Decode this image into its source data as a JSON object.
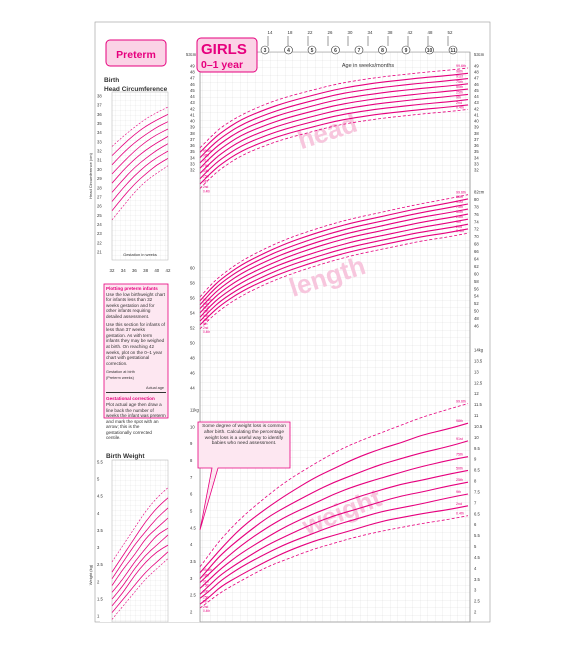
{
  "header": {
    "preterm_label": "Preterm",
    "title": "GIRLS",
    "subtitle": "0–1 year",
    "top_axis_label": "Age in weeks/months",
    "week_ticks": [
      "14",
      "18",
      "22",
      "26",
      "30",
      "34",
      "38",
      "42",
      "48",
      "52"
    ],
    "month_ticks": [
      "3",
      "4",
      "5",
      "6",
      "7",
      "8",
      "9",
      "10",
      "11"
    ],
    "right_cm_label": "53cm",
    "left_cm_label": "53cm"
  },
  "colors": {
    "magenta": "#e6007e",
    "light_pink": "#f7c6dd",
    "pale_pink": "#fde7f1",
    "grid": "#c9c9c9",
    "text": "#333333"
  },
  "watermarks": [
    "head",
    "length",
    "weight"
  ],
  "percentile_labels": [
    "99.6th",
    "98th",
    "91st",
    "75th",
    "50th",
    "25th",
    "9th",
    "2nd",
    "0.4th"
  ],
  "preterm_head": {
    "title_line1": "Birth",
    "title_line2": "Head Circumference",
    "ylabel": "Head Circumference (cm)",
    "xlabel": "Gestation in weeks",
    "y_ticks": [
      "38",
      "37",
      "36",
      "35",
      "34",
      "33",
      "32",
      "31",
      "30",
      "29",
      "28",
      "27",
      "26",
      "25",
      "24",
      "23",
      "22",
      "21"
    ],
    "x_ticks": [
      "32",
      "34",
      "36",
      "38",
      "40",
      "42"
    ]
  },
  "preterm_weight": {
    "title": "Birth Weight",
    "ylabel": "Weight (kg)",
    "y_ticks": [
      "5.5",
      "5",
      "4.5",
      "4",
      "3.5",
      "3",
      "2.5",
      "2",
      "1.5",
      "1"
    ]
  },
  "info_box": {
    "para1_heading": "Plotting preterm infants",
    "para1": "Use the low birthweight chart for infants less than 32 weeks gestation and for other infants requiring detailed assessment.",
    "para2": "Use this section for infants of less than 37 weeks gestation. As with term infants they may be weighed at birth. On reaching 42 weeks, plot on the 0–1 year chart with gestational correction.",
    "diagram_label1": "Gestation at birth",
    "diagram_label2": "(Preterm weeks)",
    "diagram_label3": "Actual age",
    "para3_heading": "Gestational correction",
    "para3": "Plot actual age then draw a line back the number of weeks the infant was preterm and mark the spot with an arrow; this is the gestationally corrected centile."
  },
  "callout": {
    "text": "Some degree of weight loss is common after birth. Calculating the percentage weight loss is a useful way to identify babies who need assessment."
  },
  "main_axes": {
    "head_ticks": [
      "49",
      "48",
      "47",
      "46",
      "45",
      "44",
      "43",
      "42",
      "41",
      "40",
      "39",
      "38",
      "37",
      "36",
      "35",
      "34",
      "33",
      "32"
    ],
    "length_ticks": [
      "82cm",
      "80",
      "78",
      "76",
      "74",
      "72",
      "70",
      "68",
      "66",
      "64",
      "62",
      "60",
      "58",
      "56",
      "54",
      "52",
      "50",
      "48",
      "46"
    ],
    "weight_ticks": [
      "14kg",
      "13.5",
      "13",
      "12.5",
      "12",
      "11.5",
      "11",
      "10.5",
      "10",
      "9.5",
      "9",
      "8.5",
      "8",
      "7.5",
      "7",
      "6.5",
      "6",
      "5.5",
      "5",
      "4.5",
      "4",
      "3.5",
      "3",
      "2.5",
      "2"
    ],
    "left_length_ticks": [
      "60",
      "58",
      "56",
      "54",
      "52",
      "50",
      "48",
      "46",
      "44"
    ],
    "left_weight_ticks": [
      "11kg",
      "10",
      "9",
      "8",
      "7",
      "6",
      "5",
      "4.5",
      "4",
      "3.5",
      "3",
      "2.5",
      "2"
    ],
    "head_unit": "cm",
    "length_unit": "cm",
    "weight_unit": "kg"
  },
  "chart_data": [
    {
      "type": "line",
      "title": "Head circumference",
      "xlabel": "Age in weeks/months",
      "ylabel": "cm",
      "x": [
        0,
        2,
        4,
        8,
        13,
        17,
        22,
        26,
        30,
        35,
        39,
        43,
        48,
        52
      ],
      "ylim": [
        32,
        49
      ],
      "series": [
        {
          "name": "99.6th",
          "values": [
            37.6,
            39.0,
            40.3,
            42.0,
            43.5,
            44.4,
            45.3,
            46.0,
            46.5,
            47.0,
            47.3,
            47.6,
            47.9,
            48.2
          ]
        },
        {
          "name": "98th",
          "values": [
            37.0,
            38.4,
            39.6,
            41.4,
            42.8,
            43.7,
            44.6,
            45.3,
            45.8,
            46.3,
            46.6,
            46.9,
            47.2,
            47.5
          ]
        },
        {
          "name": "91st",
          "values": [
            36.3,
            37.7,
            38.9,
            40.7,
            42.1,
            43.0,
            43.9,
            44.6,
            45.1,
            45.6,
            45.9,
            46.2,
            46.5,
            46.8
          ]
        },
        {
          "name": "75th",
          "values": [
            35.6,
            37.0,
            38.2,
            40.0,
            41.4,
            42.3,
            43.2,
            43.9,
            44.4,
            44.9,
            45.2,
            45.5,
            45.8,
            46.1
          ]
        },
        {
          "name": "50th",
          "values": [
            34.9,
            36.3,
            37.5,
            39.3,
            40.7,
            41.6,
            42.5,
            43.2,
            43.7,
            44.2,
            44.5,
            44.8,
            45.1,
            45.4
          ]
        },
        {
          "name": "25th",
          "values": [
            34.2,
            35.6,
            36.8,
            38.6,
            40.0,
            40.9,
            41.8,
            42.5,
            43.0,
            43.5,
            43.8,
            44.1,
            44.4,
            44.7
          ]
        },
        {
          "name": "9th",
          "values": [
            33.5,
            34.9,
            36.1,
            37.9,
            39.3,
            40.2,
            41.1,
            41.8,
            42.3,
            42.8,
            43.1,
            43.4,
            43.7,
            44.0
          ]
        },
        {
          "name": "2nd",
          "values": [
            32.8,
            34.2,
            35.4,
            37.2,
            38.6,
            39.5,
            40.4,
            41.1,
            41.6,
            42.1,
            42.4,
            42.7,
            43.0,
            43.3
          ]
        },
        {
          "name": "0.4th",
          "values": [
            32.2,
            33.6,
            34.8,
            36.6,
            38.0,
            38.9,
            39.8,
            40.5,
            41.0,
            41.5,
            41.8,
            42.1,
            42.4,
            42.7
          ]
        }
      ]
    },
    {
      "type": "line",
      "title": "Length",
      "xlabel": "Age in weeks/months",
      "ylabel": "cm",
      "x": [
        0,
        2,
        4,
        8,
        13,
        17,
        22,
        26,
        30,
        35,
        39,
        43,
        48,
        52
      ],
      "ylim": [
        46,
        82
      ],
      "series": [
        {
          "name": "99.6th",
          "values": [
            54.5,
            57.5,
            60.0,
            63.8,
            67.2,
            69.5,
            71.8,
            73.4,
            74.8,
            76.2,
            77.4,
            78.5,
            79.7,
            80.8
          ]
        },
        {
          "name": "98th",
          "values": [
            53.5,
            56.5,
            59.0,
            62.8,
            66.1,
            68.4,
            70.7,
            72.3,
            73.7,
            75.1,
            76.3,
            77.4,
            78.6,
            79.7
          ]
        },
        {
          "name": "91st",
          "values": [
            52.5,
            55.5,
            58.0,
            61.7,
            65.0,
            67.2,
            69.5,
            71.1,
            72.5,
            73.9,
            75.1,
            76.2,
            77.4,
            78.4
          ]
        },
        {
          "name": "75th",
          "values": [
            51.5,
            54.4,
            56.9,
            60.6,
            63.8,
            66.0,
            68.3,
            69.9,
            71.3,
            72.7,
            73.9,
            75.0,
            76.1,
            77.1
          ]
        },
        {
          "name": "50th",
          "values": [
            50.4,
            53.3,
            55.8,
            59.4,
            62.6,
            64.8,
            67.1,
            68.7,
            70.1,
            71.5,
            72.6,
            73.7,
            74.8,
            75.8
          ]
        },
        {
          "name": "25th",
          "values": [
            49.3,
            52.2,
            54.6,
            58.2,
            61.4,
            63.6,
            65.8,
            67.4,
            68.8,
            70.2,
            71.3,
            72.4,
            73.5,
            74.5
          ]
        },
        {
          "name": "9th",
          "values": [
            48.3,
            51.1,
            53.5,
            57.0,
            60.2,
            62.4,
            64.6,
            66.2,
            67.6,
            69.0,
            70.1,
            71.2,
            72.2,
            73.2
          ]
        },
        {
          "name": "2nd",
          "values": [
            47.3,
            50.0,
            52.4,
            55.9,
            59.1,
            61.2,
            63.4,
            65.0,
            66.4,
            67.8,
            68.9,
            70.0,
            71.0,
            72.0
          ]
        },
        {
          "name": "0.4th",
          "values": [
            46.3,
            49.0,
            51.3,
            54.8,
            58.0,
            60.1,
            62.3,
            63.9,
            65.3,
            66.7,
            67.8,
            68.9,
            69.9,
            70.9
          ]
        }
      ]
    },
    {
      "type": "line",
      "title": "Weight",
      "xlabel": "Age in weeks/months",
      "ylabel": "kg",
      "x": [
        0,
        2,
        4,
        8,
        13,
        17,
        22,
        26,
        30,
        35,
        39,
        43,
        48,
        52
      ],
      "ylim": [
        2,
        14
      ],
      "series": [
        {
          "name": "99.6th",
          "values": [
            4.4,
            5.1,
            5.8,
            6.9,
            8.0,
            8.8,
            9.6,
            10.2,
            10.7,
            11.2,
            11.6,
            12.0,
            12.4,
            12.7
          ]
        },
        {
          "name": "98th",
          "values": [
            4.1,
            4.7,
            5.3,
            6.4,
            7.4,
            8.1,
            8.9,
            9.4,
            9.9,
            10.4,
            10.7,
            11.1,
            11.4,
            11.7
          ]
        },
        {
          "name": "91st",
          "values": [
            3.8,
            4.4,
            5.0,
            5.9,
            6.9,
            7.5,
            8.2,
            8.7,
            9.1,
            9.6,
            9.9,
            10.2,
            10.5,
            10.8
          ]
        },
        {
          "name": "75th",
          "values": [
            3.6,
            4.1,
            4.6,
            5.5,
            6.4,
            7.0,
            7.6,
            8.1,
            8.5,
            8.9,
            9.2,
            9.5,
            9.8,
            10.0
          ]
        },
        {
          "name": "50th",
          "values": [
            3.3,
            3.8,
            4.3,
            5.1,
            5.9,
            6.5,
            7.1,
            7.5,
            7.9,
            8.3,
            8.6,
            8.8,
            9.1,
            9.3
          ]
        },
        {
          "name": "25th",
          "values": [
            3.0,
            3.5,
            4.0,
            4.7,
            5.5,
            6.0,
            6.6,
            7.0,
            7.3,
            7.7,
            8.0,
            8.2,
            8.5,
            8.7
          ]
        },
        {
          "name": "9th",
          "values": [
            2.8,
            3.2,
            3.7,
            4.4,
            5.1,
            5.6,
            6.1,
            6.5,
            6.8,
            7.2,
            7.4,
            7.6,
            7.9,
            8.1
          ]
        },
        {
          "name": "2nd",
          "values": [
            2.5,
            2.9,
            3.4,
            4.0,
            4.7,
            5.2,
            5.7,
            6.0,
            6.3,
            6.7,
            6.9,
            7.1,
            7.3,
            7.5
          ]
        },
        {
          "name": "0.4th",
          "values": [
            2.3,
            2.7,
            3.1,
            3.7,
            4.4,
            4.8,
            5.3,
            5.6,
            5.9,
            6.2,
            6.4,
            6.6,
            6.8,
            7.0
          ]
        }
      ]
    },
    {
      "type": "line",
      "title": "Birth Head Circumference",
      "xlabel": "Gestation in weeks",
      "ylabel": "Head Circumference (cm)",
      "x": [
        32,
        34,
        36,
        38,
        40,
        42
      ],
      "ylim": [
        21,
        38
      ],
      "series": [
        {
          "name": "99.6th",
          "values": [
            32.5,
            33.6,
            34.6,
            35.5,
            36.2,
            36.8
          ]
        },
        {
          "name": "98th",
          "values": [
            31.5,
            32.7,
            33.8,
            34.7,
            35.4,
            36.0
          ]
        },
        {
          "name": "91st",
          "values": [
            30.5,
            31.8,
            32.9,
            33.8,
            34.6,
            35.2
          ]
        },
        {
          "name": "75th",
          "values": [
            29.5,
            30.8,
            32.0,
            33.0,
            33.8,
            34.4
          ]
        },
        {
          "name": "50th",
          "values": [
            28.5,
            29.9,
            31.1,
            32.1,
            32.9,
            33.6
          ]
        },
        {
          "name": "25th",
          "values": [
            27.5,
            28.9,
            30.2,
            31.2,
            32.1,
            32.8
          ]
        },
        {
          "name": "9th",
          "values": [
            26.5,
            28.0,
            29.3,
            30.4,
            31.3,
            32.0
          ]
        },
        {
          "name": "2nd",
          "values": [
            25.5,
            27.0,
            28.4,
            29.5,
            30.5,
            31.2
          ]
        },
        {
          "name": "0.4th",
          "values": [
            24.5,
            26.0,
            27.5,
            28.7,
            29.6,
            30.4
          ]
        }
      ]
    },
    {
      "type": "line",
      "title": "Birth Weight",
      "xlabel": "Gestation in weeks",
      "ylabel": "Weight (kg)",
      "x": [
        32,
        34,
        36,
        38,
        40,
        42
      ],
      "ylim": [
        1,
        5.5
      ],
      "series": [
        {
          "name": "99.6th",
          "values": [
            2.6,
            3.1,
            3.6,
            4.1,
            4.5,
            4.8
          ]
        },
        {
          "name": "98th",
          "values": [
            2.3,
            2.8,
            3.3,
            3.8,
            4.2,
            4.5
          ]
        },
        {
          "name": "91st",
          "values": [
            2.1,
            2.6,
            3.1,
            3.5,
            3.9,
            4.2
          ]
        },
        {
          "name": "75th",
          "values": [
            1.9,
            2.4,
            2.8,
            3.3,
            3.6,
            3.9
          ]
        },
        {
          "name": "50th",
          "values": [
            1.7,
            2.1,
            2.6,
            3.0,
            3.4,
            3.6
          ]
        },
        {
          "name": "25th",
          "values": [
            1.5,
            1.9,
            2.4,
            2.8,
            3.1,
            3.4
          ]
        },
        {
          "name": "9th",
          "values": [
            1.3,
            1.7,
            2.2,
            2.6,
            2.9,
            3.1
          ]
        },
        {
          "name": "2nd",
          "values": [
            1.1,
            1.5,
            1.9,
            2.3,
            2.6,
            2.9
          ]
        },
        {
          "name": "0.4th",
          "values": [
            0.9,
            1.3,
            1.7,
            2.1,
            2.4,
            2.7
          ]
        }
      ]
    }
  ]
}
